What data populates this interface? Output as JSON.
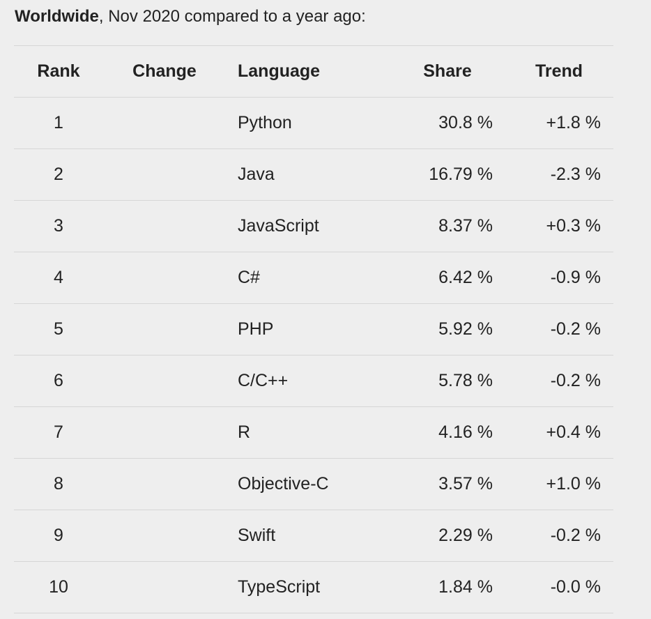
{
  "header": {
    "bold": "Worldwide",
    "rest": ", Nov 2020 compared to a year ago:"
  },
  "table": {
    "columns": [
      "Rank",
      "Change",
      "Language",
      "Share",
      "Trend"
    ],
    "rows": [
      {
        "rank": "1",
        "language": "Python",
        "share": "30.8 %",
        "trend": "+1.8 %"
      },
      {
        "rank": "2",
        "language": "Java",
        "share": "16.79 %",
        "trend": "-2.3 %"
      },
      {
        "rank": "3",
        "language": "JavaScript",
        "share": "8.37 %",
        "trend": "+0.3 %"
      },
      {
        "rank": "4",
        "language": "C#",
        "share": "6.42 %",
        "trend": "-0.9 %"
      },
      {
        "rank": "5",
        "language": "PHP",
        "share": "5.92 %",
        "trend": "-0.2 %"
      },
      {
        "rank": "6",
        "language": "C/C++",
        "share": "5.78 %",
        "trend": "-0.2 %"
      },
      {
        "rank": "7",
        "language": "R",
        "share": "4.16 %",
        "trend": "+0.4 %"
      },
      {
        "rank": "8",
        "language": "Objective-C",
        "share": "3.57 %",
        "trend": "+1.0 %"
      },
      {
        "rank": "9",
        "language": "Swift",
        "share": "2.29 %",
        "trend": "-0.2 %"
      },
      {
        "rank": "10",
        "language": "TypeScript",
        "share": "1.84 %",
        "trend": "-0.0 %"
      }
    ]
  }
}
